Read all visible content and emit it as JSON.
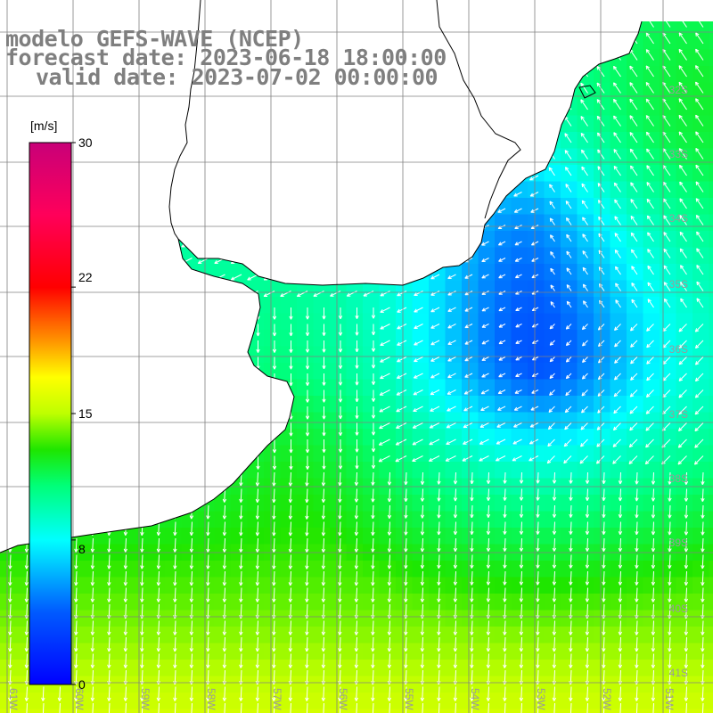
{
  "titles": {
    "line1": "modelo GEFS-WAVE (NCEP)",
    "line2": "forecast date: 2023-06-18 18:00:00",
    "line3": "valid date: 2023-07-02 00:00:00"
  },
  "colorbar": {
    "unit": "[m/s]",
    "ticks": [
      {
        "label": "30",
        "value": 30
      },
      {
        "label": "22",
        "value": 22
      },
      {
        "label": "15",
        "value": 15
      },
      {
        "label": "8",
        "value": 8
      },
      {
        "label": "0",
        "value": 0
      }
    ],
    "colors": [
      "#0000ff",
      "#0077ff",
      "#00ffff",
      "#00ff44",
      "#44ff00",
      "#ffff00",
      "#ff8800",
      "#ff0000",
      "#ff0055",
      "#cc0077"
    ]
  },
  "lat_labels": [
    "32S",
    "33S",
    "34S",
    "35S",
    "36S",
    "37S",
    "38S",
    "39S",
    "40S",
    "41S"
  ],
  "lon_labels": [
    "61W",
    "60W",
    "59W",
    "58W",
    "57W",
    "56W",
    "55W",
    "54W",
    "53W",
    "52W",
    "51W"
  ],
  "colors": {
    "land": "#ffffff",
    "coast": "#000000",
    "grid": "#808080",
    "arrow": "#ffffff",
    "title": "#7f7f7f"
  }
}
